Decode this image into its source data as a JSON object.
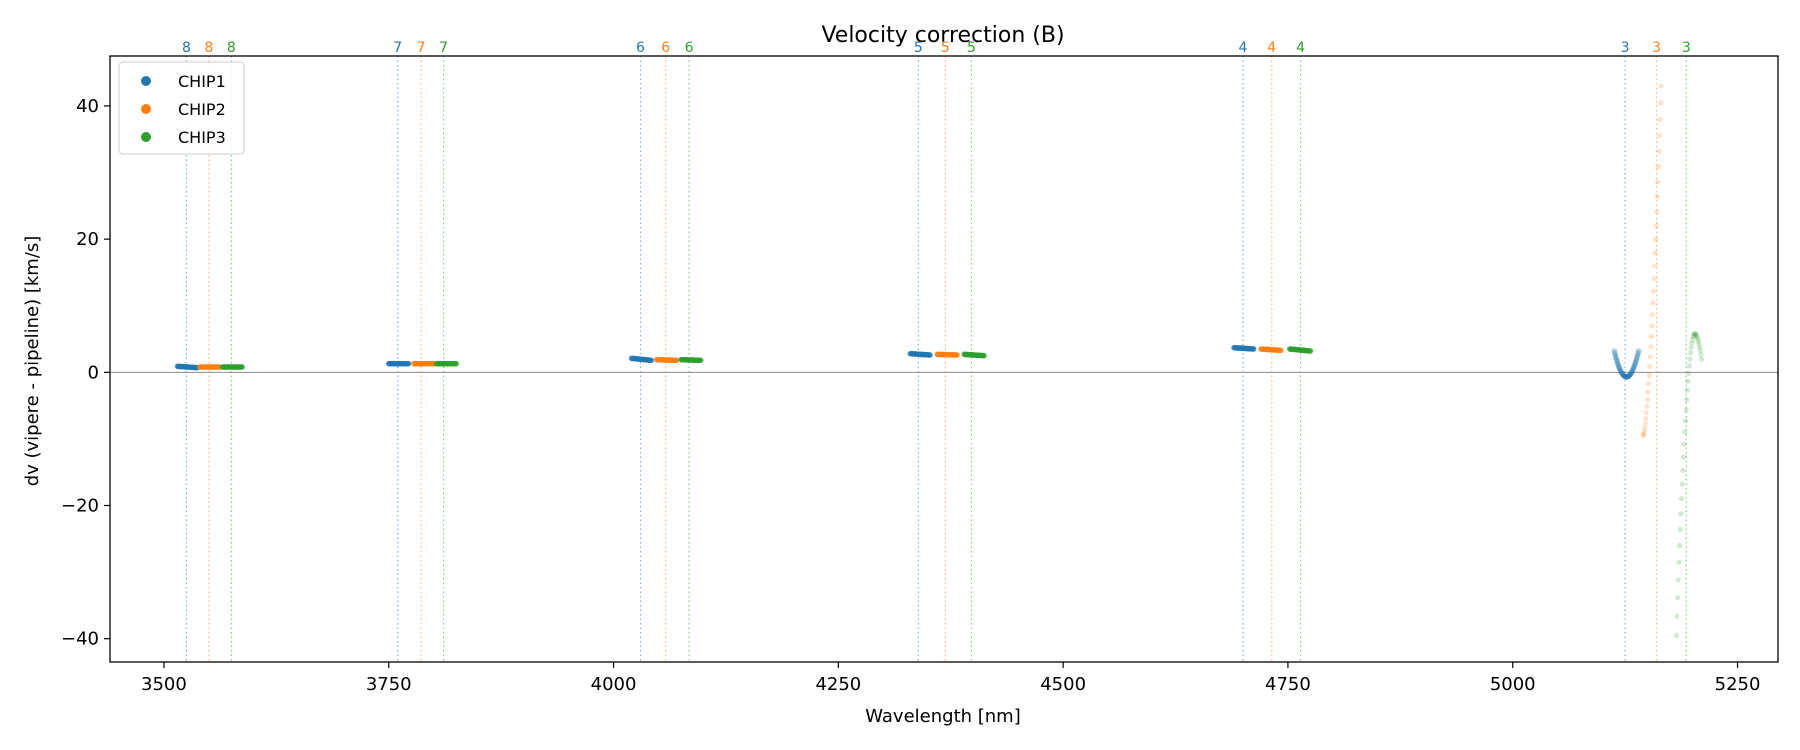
{
  "chart_data": {
    "type": "scatter",
    "title": "Velocity correction (B)",
    "xlabel": "Wavelength [nm]",
    "ylabel": "dv (vipere - pipeline) [km/s]",
    "xlim": [
      3440,
      5295
    ],
    "ylim": [
      -43.5,
      47.5
    ],
    "xticks": [
      3500,
      3750,
      4000,
      4250,
      4500,
      4750,
      5000,
      5250
    ],
    "yticks": [
      -40,
      -20,
      0,
      20,
      40
    ],
    "legend_position": "upper-left",
    "zero_line": true,
    "series": [
      {
        "name": "CHIP1",
        "color": "#1f77b4",
        "points": [
          {
            "order": "8",
            "x_start": 3515,
            "x_end": 3537,
            "y_start": 0.9,
            "y_end": 0.7
          },
          {
            "order": "7",
            "x_start": 3750,
            "x_end": 3772,
            "y_start": 1.3,
            "y_end": 1.3
          },
          {
            "order": "6",
            "x_start": 4020,
            "x_end": 4042,
            "y_start": 2.1,
            "y_end": 1.8
          },
          {
            "order": "5",
            "x_start": 4330,
            "x_end": 4352,
            "y_start": 2.8,
            "y_end": 2.6
          },
          {
            "order": "4",
            "x_start": 4690,
            "x_end": 4712,
            "y_start": 3.7,
            "y_end": 3.5
          },
          {
            "order": "3",
            "x_start": 5113,
            "x_end": 5140,
            "y_min": -0.7,
            "y_edge": 3.2,
            "shape": "u"
          }
        ]
      },
      {
        "name": "CHIP2",
        "color": "#ff7f0e",
        "points": [
          {
            "order": "8",
            "x_start": 3540,
            "x_end": 3562,
            "y_start": 0.8,
            "y_end": 0.8
          },
          {
            "order": "7",
            "x_start": 3778,
            "x_end": 3800,
            "y_start": 1.3,
            "y_end": 1.3
          },
          {
            "order": "6",
            "x_start": 4048,
            "x_end": 4070,
            "y_start": 1.9,
            "y_end": 1.8
          },
          {
            "order": "5",
            "x_start": 4360,
            "x_end": 4382,
            "y_start": 2.7,
            "y_end": 2.6
          },
          {
            "order": "4",
            "x_start": 4720,
            "x_end": 4742,
            "y_start": 3.5,
            "y_end": 3.3
          },
          {
            "order": "3",
            "x_start": 5145,
            "x_end": 5165,
            "y_start": -9.5,
            "y_end": 43.0,
            "shape": "rise"
          }
        ]
      },
      {
        "name": "CHIP3",
        "color": "#2ca02c",
        "points": [
          {
            "order": "8",
            "x_start": 3565,
            "x_end": 3587,
            "y_start": 0.8,
            "y_end": 0.8
          },
          {
            "order": "7",
            "x_start": 3803,
            "x_end": 3825,
            "y_start": 1.3,
            "y_end": 1.3
          },
          {
            "order": "6",
            "x_start": 4075,
            "x_end": 4097,
            "y_start": 1.9,
            "y_end": 1.8
          },
          {
            "order": "5",
            "x_start": 4390,
            "x_end": 4412,
            "y_start": 2.7,
            "y_end": 2.5
          },
          {
            "order": "4",
            "x_start": 4752,
            "x_end": 4775,
            "y_start": 3.5,
            "y_end": 3.2
          },
          {
            "order": "3",
            "x_start": 5182,
            "x_end": 5210,
            "y_start": -39.5,
            "y_peak": 5.8,
            "y_end": 2.0,
            "shape": "rise-hump"
          }
        ]
      }
    ],
    "order_markers": [
      {
        "series": "CHIP1",
        "order": "8",
        "x": 3525
      },
      {
        "series": "CHIP2",
        "order": "8",
        "x": 3550
      },
      {
        "series": "CHIP3",
        "order": "8",
        "x": 3575
      },
      {
        "series": "CHIP1",
        "order": "7",
        "x": 3760
      },
      {
        "series": "CHIP2",
        "order": "7",
        "x": 3786
      },
      {
        "series": "CHIP3",
        "order": "7",
        "x": 3811
      },
      {
        "series": "CHIP1",
        "order": "6",
        "x": 4030
      },
      {
        "series": "CHIP2",
        "order": "6",
        "x": 4058
      },
      {
        "series": "CHIP3",
        "order": "6",
        "x": 4084
      },
      {
        "series": "CHIP1",
        "order": "5",
        "x": 4339
      },
      {
        "series": "CHIP2",
        "order": "5",
        "x": 4369
      },
      {
        "series": "CHIP3",
        "order": "5",
        "x": 4398
      },
      {
        "series": "CHIP1",
        "order": "4",
        "x": 4700
      },
      {
        "series": "CHIP2",
        "order": "4",
        "x": 4732
      },
      {
        "series": "CHIP3",
        "order": "4",
        "x": 4764
      },
      {
        "series": "CHIP1",
        "order": "3",
        "x": 5125
      },
      {
        "series": "CHIP2",
        "order": "3",
        "x": 5160
      },
      {
        "series": "CHIP3",
        "order": "3",
        "x": 5193
      }
    ]
  }
}
